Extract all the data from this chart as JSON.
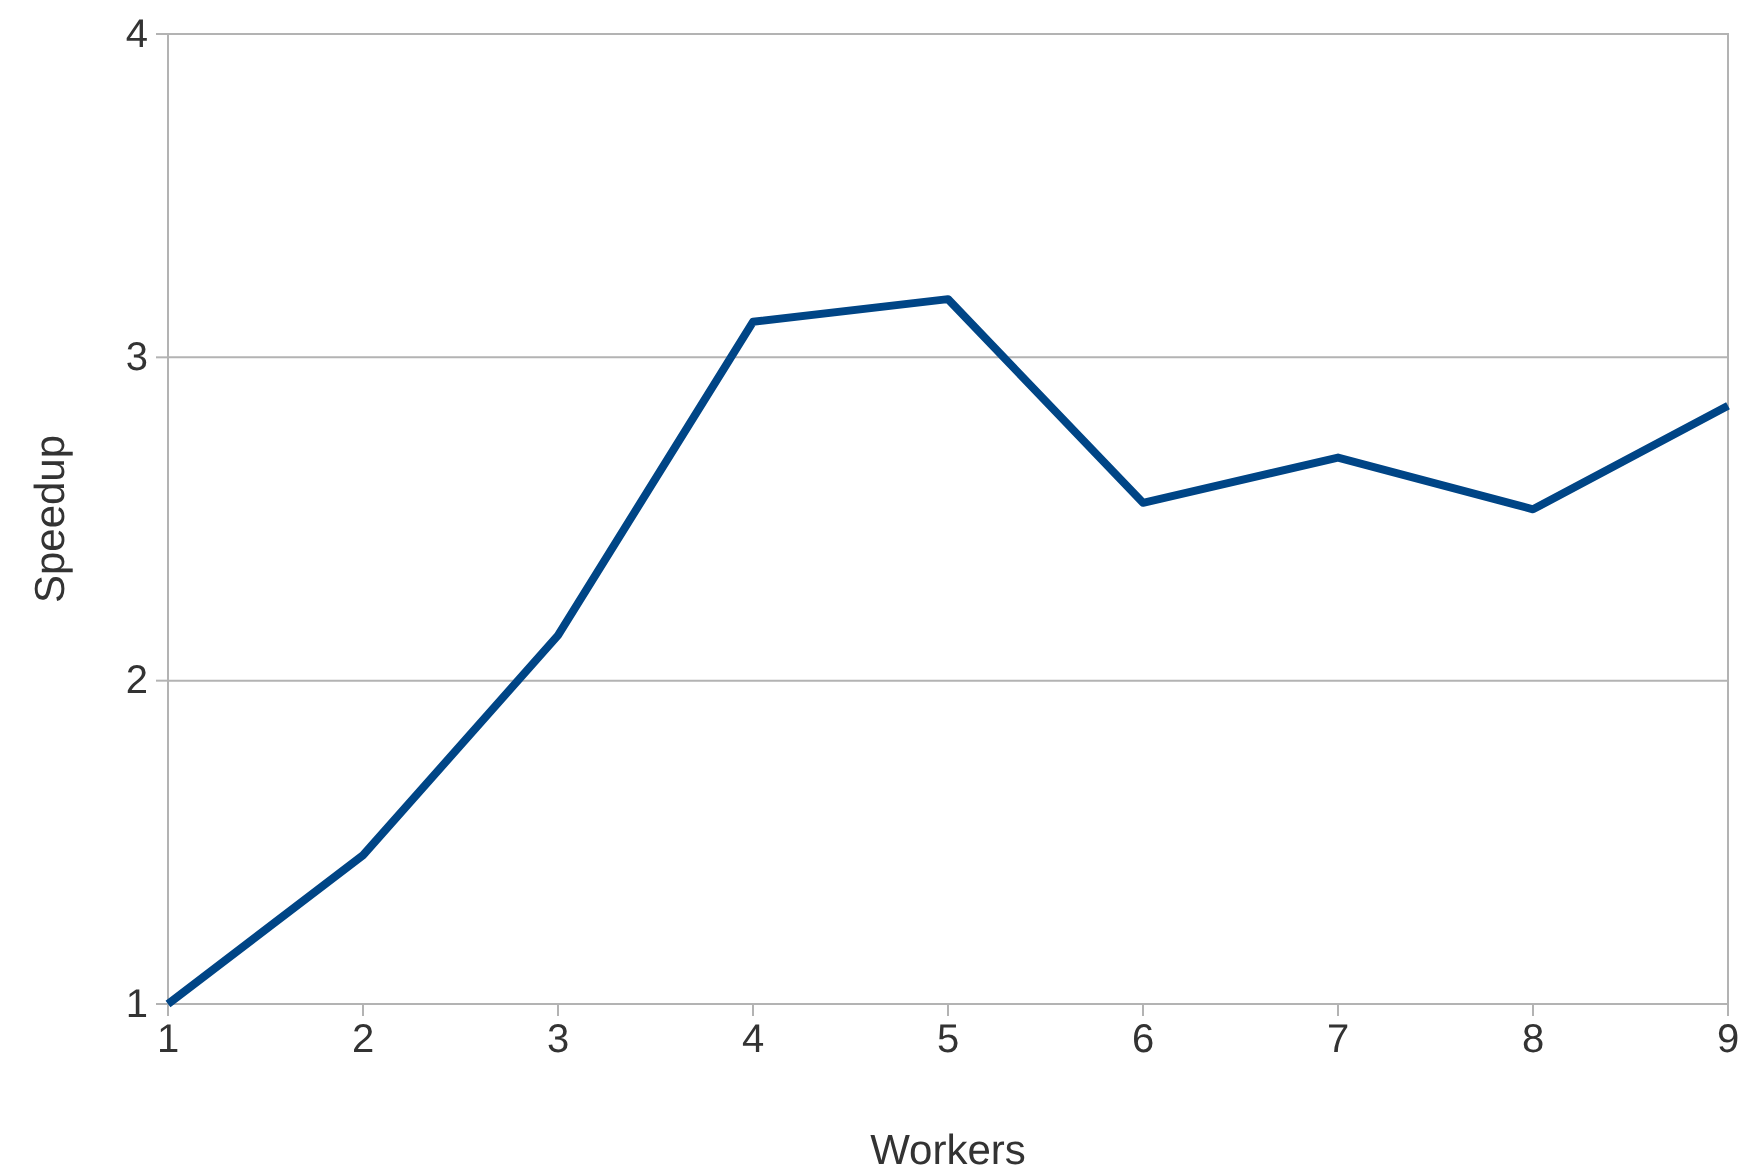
{
  "chart_data": {
    "type": "line",
    "xlabel": "Workers",
    "ylabel": "Speedup",
    "x": [
      1,
      2,
      3,
      4,
      5,
      6,
      7,
      8,
      9
    ],
    "series": [
      {
        "color": "#004586",
        "values": [
          1.0,
          1.46,
          2.14,
          3.11,
          3.18,
          2.55,
          2.69,
          2.53,
          2.85
        ]
      }
    ],
    "xlim": [
      1,
      9
    ],
    "xticks": [
      1,
      2,
      3,
      4,
      5,
      6,
      7,
      8,
      9
    ],
    "ylim": [
      1,
      4
    ],
    "yticks": [
      1,
      2,
      3,
      4
    ],
    "grid": "y",
    "marker": "none",
    "line_style": "solid"
  }
}
